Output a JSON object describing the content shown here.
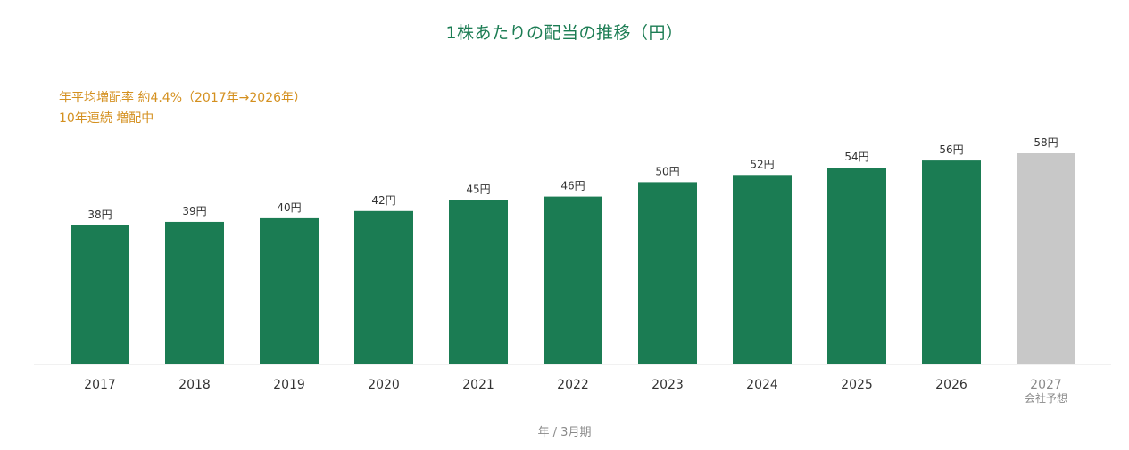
{
  "chart_data": {
    "type": "bar",
    "title": "1株あたりの配当の推移（円）",
    "annotations": [
      "年平均増配率 約4.4%（2017年→2026年）",
      "10年連続 増配中"
    ],
    "categories": [
      "2017",
      "2018",
      "2019",
      "2020",
      "2021",
      "2022",
      "2023",
      "2024",
      "2025",
      "2026",
      "2027"
    ],
    "category_sublabels": [
      "",
      "",
      "",
      "",
      "",
      "",
      "",
      "",
      "",
      "",
      "会社予想"
    ],
    "values": [
      38,
      39,
      40,
      42,
      45,
      46,
      50,
      52,
      54,
      56,
      58
    ],
    "value_labels": [
      "38円",
      "39円",
      "40円",
      "42円",
      "45円",
      "46円",
      "50円",
      "52円",
      "54円",
      "56円",
      "58円"
    ],
    "forecast": [
      false,
      false,
      false,
      false,
      false,
      false,
      false,
      false,
      false,
      false,
      true
    ],
    "xlabel": "年 / 3月期",
    "ylabel": "",
    "ylim": [
      0,
      60
    ],
    "grid": false,
    "legend": "none",
    "colors": {
      "actual": "#1b7c53",
      "forecast": "#c8c8c8",
      "title": "#1b7c53",
      "annotation": "#d4901f",
      "baseline": "#e3e3e3",
      "label": "#333333",
      "forecast_label": "#8a8a8a"
    }
  }
}
